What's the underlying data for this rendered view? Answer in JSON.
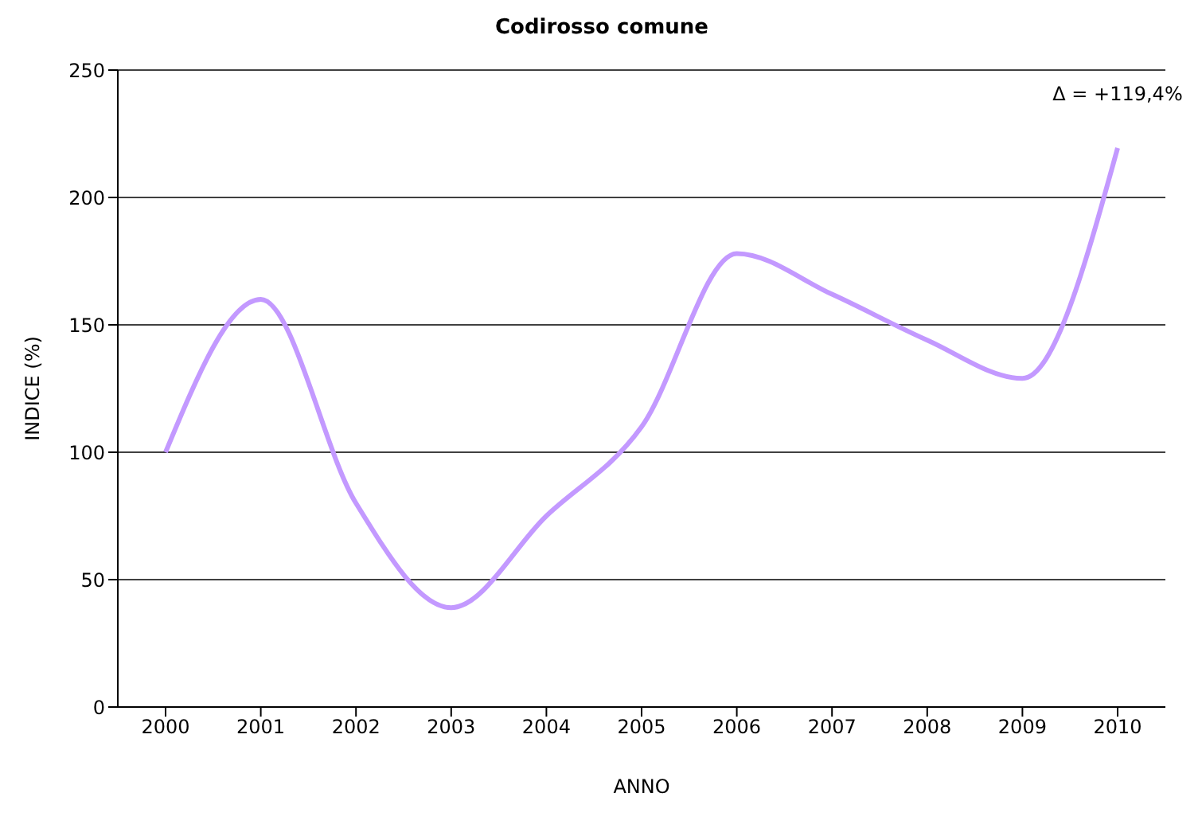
{
  "chart_data": {
    "type": "line",
    "title": "Codirosso comune",
    "xlabel": "ANNO",
    "ylabel": "INDICE (%)",
    "categories": [
      "2000",
      "2001",
      "2002",
      "2003",
      "2004",
      "2005",
      "2006",
      "2007",
      "2008",
      "2009",
      "2010"
    ],
    "series": [
      {
        "color": "#c399ff",
        "values": [
          100,
          160,
          80,
          39,
          75,
          110,
          178,
          162,
          144,
          129,
          219.4
        ]
      }
    ],
    "ylim": [
      0,
      250
    ],
    "yticks": [
      0,
      50,
      100,
      150,
      200,
      250
    ],
    "grid": "y",
    "legend": false,
    "marker": "none",
    "line_style": "solid",
    "annotations": [
      {
        "text": "Δ = +119,4%",
        "x": "2010",
        "y": 219.4
      }
    ]
  }
}
